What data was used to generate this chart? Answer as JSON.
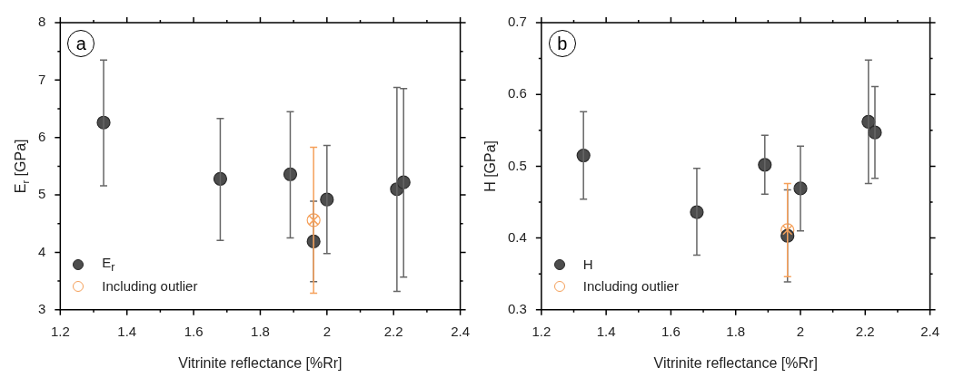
{
  "chart_data": [
    {
      "type": "scatter",
      "annotations": [
        "a"
      ],
      "xlabel": "Vitrinite reflectance [%Rr]",
      "ylabel": "E$_{r}$ [GPa]",
      "xlim": [
        1.2,
        2.4
      ],
      "xticks": [
        1.2,
        {
          "value": 1.3,
          "label": null
        },
        1.4,
        {
          "value": 1.5,
          "label": null
        },
        1.6,
        {
          "value": 1.7,
          "label": null
        },
        1.8,
        {
          "value": 1.9,
          "label": null
        },
        2,
        {
          "value": 2.1,
          "label": null
        },
        2.2,
        {
          "value": 2.3,
          "label": null
        },
        2.4
      ],
      "ylim": [
        3,
        8
      ],
      "yticks": [
        3,
        {
          "value": 3.5,
          "label": null
        },
        4,
        {
          "value": 4.5,
          "label": null
        },
        5,
        {
          "value": 5.5,
          "label": null
        },
        6,
        {
          "value": 6.5,
          "label": null
        },
        7,
        {
          "value": 7.5,
          "label": null
        },
        8
      ],
      "legend": "bottom left",
      "series": [
        {
          "name": "E$_{r}$",
          "color": "#4d4d4d",
          "marker": "circle",
          "x": [
            1.33,
            1.68,
            1.89,
            1.96,
            2.0,
            2.21,
            2.23
          ],
          "values": [
            6.26,
            5.28,
            5.36,
            4.19,
            4.92,
            5.1,
            5.22
          ],
          "errors": [
            [
              5.16,
              7.35
            ],
            [
              4.21,
              6.33
            ],
            [
              4.25,
              6.45
            ],
            [
              3.49,
              4.89
            ],
            [
              3.98,
              5.86
            ],
            [
              3.32,
              6.87
            ],
            [
              3.57,
              6.85
            ]
          ]
        },
        {
          "name": "Including outlier",
          "color": "#f5a05a",
          "marker": "circle",
          "x": [
            1.96
          ],
          "values": [
            4.56
          ],
          "errors": [
            [
              3.29,
              5.83
            ]
          ]
        }
      ]
    },
    {
      "type": "scatter",
      "annotations": [
        "b"
      ],
      "xlabel": "Vitrinite reflectance [%Rr]",
      "ylabel": "H [GPa]",
      "xlim": [
        1.2,
        2.4
      ],
      "xticks": [
        1.2,
        {
          "value": 1.3,
          "label": null
        },
        1.4,
        {
          "value": 1.5,
          "label": null
        },
        1.6,
        {
          "value": 1.7,
          "label": null
        },
        1.8,
        {
          "value": 1.9,
          "label": null
        },
        2,
        {
          "value": 2.1,
          "label": null
        },
        2.2,
        {
          "value": 2.3,
          "label": null
        },
        2.4
      ],
      "ylim": [
        0.3,
        0.7
      ],
      "yticks": [
        0.3,
        {
          "value": 0.35,
          "label": null
        },
        0.4,
        {
          "value": 0.45,
          "label": null
        },
        0.5,
        {
          "value": 0.55,
          "label": null
        },
        0.6,
        {
          "value": 0.65,
          "label": null
        },
        0.7
      ],
      "legend": "bottom left",
      "series": [
        {
          "name": "H",
          "color": "#4d4d4d",
          "marker": "circle",
          "x": [
            1.33,
            1.68,
            1.89,
            1.96,
            2.0,
            2.21,
            2.23
          ],
          "values": [
            0.515,
            0.436,
            0.502,
            0.403,
            0.469,
            0.562,
            0.547
          ],
          "errors": [
            [
              0.454,
              0.576
            ],
            [
              0.376,
              0.497
            ],
            [
              0.461,
              0.543
            ],
            [
              0.339,
              0.467
            ],
            [
              0.41,
              0.528
            ],
            [
              0.476,
              0.648
            ],
            [
              0.483,
              0.611
            ]
          ]
        },
        {
          "name": "Including outlier",
          "color": "#f5a05a",
          "marker": "circle",
          "x": [
            1.96
          ],
          "values": [
            0.411
          ],
          "errors": [
            [
              0.346,
              0.476
            ]
          ]
        }
      ]
    }
  ]
}
